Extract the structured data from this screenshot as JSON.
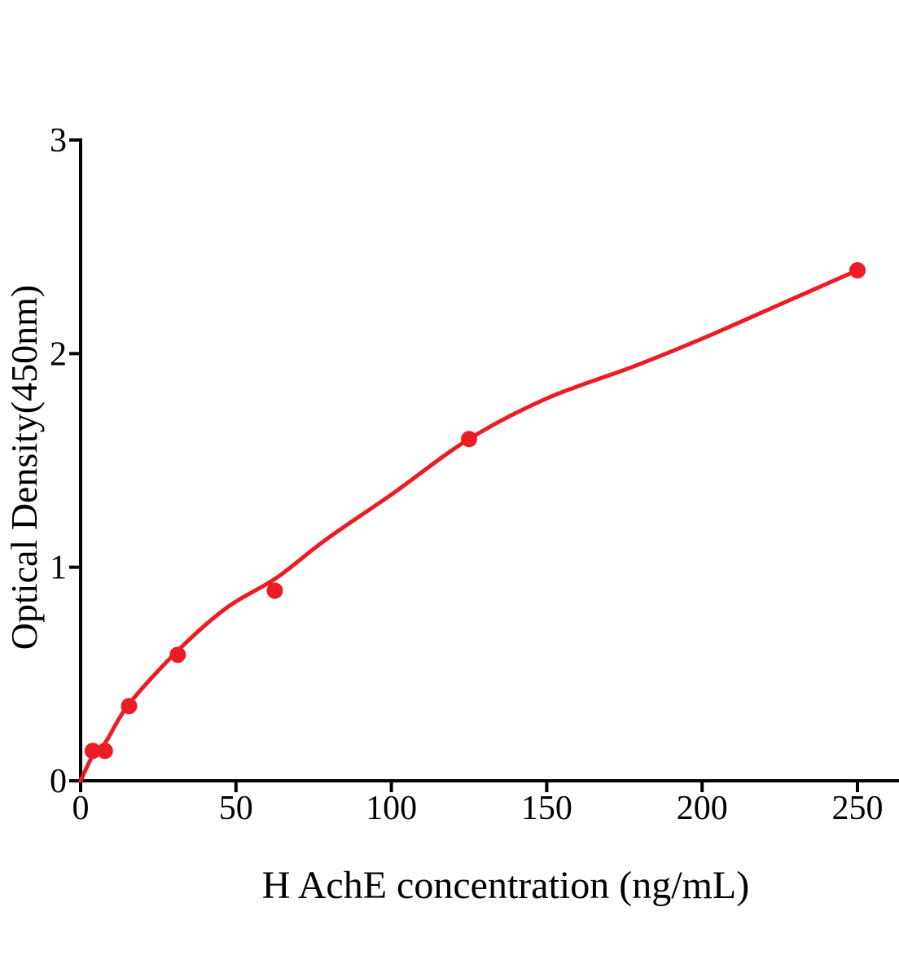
{
  "figure": {
    "background": "#ffffff",
    "text_color": "#000000"
  },
  "chart_data": {
    "type": "scatter",
    "title": "",
    "xlabel": "H AchE concentration (ng/mL)",
    "ylabel": "Optical Density(450nm)",
    "x_ticks": [
      0,
      50,
      100,
      150,
      200,
      250
    ],
    "y_ticks": [
      0,
      1,
      2,
      3
    ],
    "xlim": [
      0,
      263
    ],
    "ylim": [
      0,
      3
    ],
    "grid": false,
    "legend_position": "none",
    "axis_color": "#000000",
    "curve_color": "#ec1c24",
    "point_color": "#ec1c24",
    "points": [
      {
        "x": 3.9,
        "y": 0.14
      },
      {
        "x": 7.8,
        "y": 0.14
      },
      {
        "x": 15.6,
        "y": 0.35
      },
      {
        "x": 31.25,
        "y": 0.59
      },
      {
        "x": 62.5,
        "y": 0.89
      },
      {
        "x": 125,
        "y": 1.6
      },
      {
        "x": 250,
        "y": 2.39
      }
    ],
    "curve": [
      [
        0,
        0
      ],
      [
        4,
        0.12
      ],
      [
        8,
        0.18
      ],
      [
        15.6,
        0.36
      ],
      [
        31.3,
        0.61
      ],
      [
        47,
        0.81
      ],
      [
        63,
        0.95
      ],
      [
        79,
        1.13
      ],
      [
        100,
        1.34
      ],
      [
        125,
        1.6
      ],
      [
        150,
        1.79
      ],
      [
        178,
        1.94
      ],
      [
        200,
        2.07
      ],
      [
        225,
        2.23
      ],
      [
        250,
        2.39
      ]
    ]
  }
}
